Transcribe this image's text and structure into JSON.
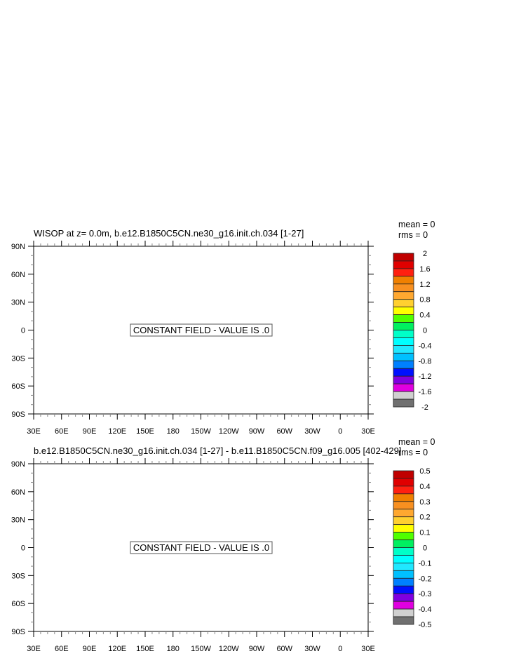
{
  "chart_data": [
    {
      "type": "contour",
      "title": "WISOP at z=   0.0m, b.e12.B1850C5CN.ne30_g16.init.ch.034 [1-27]",
      "stats": [
        "mean = 0",
        "rms = 0"
      ],
      "message": "CONSTANT FIELD - VALUE IS .0",
      "lon_ticks": [
        "30E",
        "60E",
        "90E",
        "120E",
        "150E",
        "180",
        "150W",
        "120W",
        "90W",
        "60W",
        "30W",
        "0",
        "30E"
      ],
      "lat_ticks": [
        "90N",
        "60N",
        "30N",
        "0",
        "30S",
        "60S",
        "90S"
      ],
      "colorbar_labels": [
        "2",
        "1.6",
        "1.2",
        "0.8",
        "0.4",
        "0",
        "-0.4",
        "-0.8",
        "-1.2",
        "-1.6",
        "-2"
      ],
      "colorbar_range": [
        -2,
        2
      ]
    },
    {
      "type": "contour",
      "title": "b.e12.B1850C5CN.ne30_g16.init.ch.034 [1-27] - b.e11.B1850C5CN.f09_g16.005 [402-429]",
      "stats": [
        "mean = 0",
        "rms = 0"
      ],
      "message": "CONSTANT FIELD - VALUE IS .0",
      "lon_ticks": [
        "30E",
        "60E",
        "90E",
        "120E",
        "150E",
        "180",
        "150W",
        "120W",
        "90W",
        "60W",
        "30W",
        "0",
        "30E"
      ],
      "lat_ticks": [
        "90N",
        "60N",
        "30N",
        "0",
        "30S",
        "60S",
        "90S"
      ],
      "colorbar_labels": [
        "0.5",
        "0.4",
        "0.3",
        "0.2",
        "0.1",
        "0",
        "-0.1",
        "-0.2",
        "-0.3",
        "-0.4",
        "-0.5"
      ],
      "colorbar_range": [
        -0.5,
        0.5
      ]
    }
  ],
  "colorbar_colors": [
    "#c00000",
    "#e00000",
    "#ff2010",
    "#f08000",
    "#f89020",
    "#ffa830",
    "#ffd030",
    "#ffff00",
    "#50ff00",
    "#00f060",
    "#00ffc8",
    "#00ffff",
    "#20e8ff",
    "#00c0ff",
    "#0080ff",
    "#0010ff",
    "#8000e0",
    "#e000e0",
    "#d0d0d0",
    "#707070"
  ]
}
